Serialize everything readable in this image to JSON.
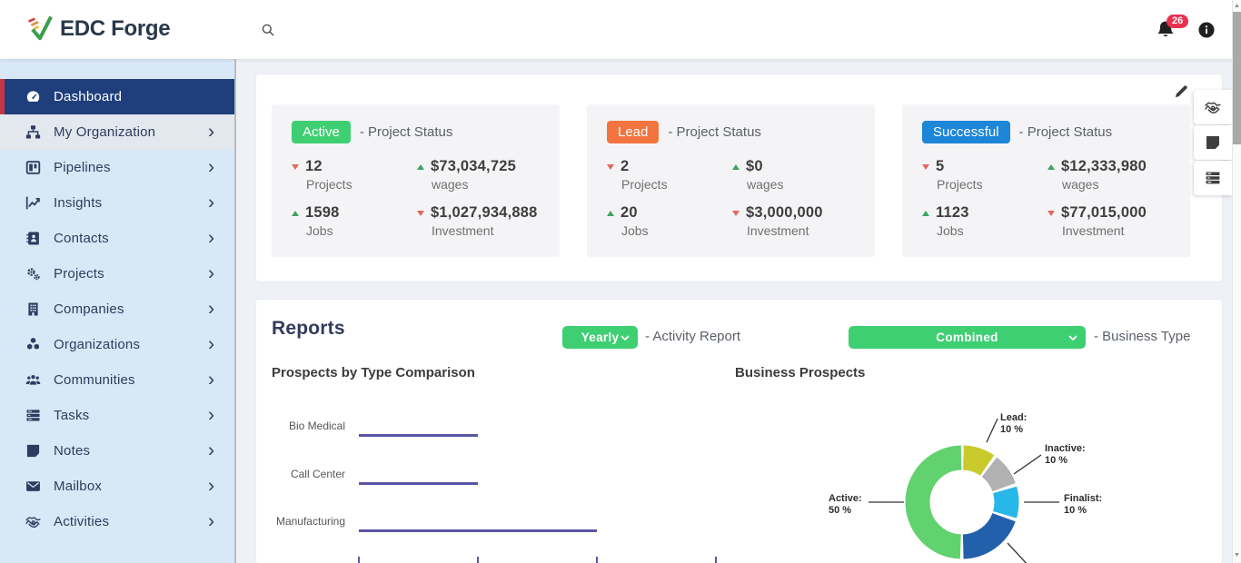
{
  "theme": {
    "sidebar_active_bg": "#1e3e7c",
    "sidebar_active_border": "#c63642",
    "accent_green": "#3ecf73",
    "trend_up": "#3ba55f",
    "trend_down": "#e2685c"
  },
  "header": {
    "brand": {
      "name": "EDC Forge"
    },
    "notifications": {
      "count": "26"
    }
  },
  "sidebar": {
    "items": [
      {
        "label": "Dashboard",
        "icon": "dashboard-icon",
        "active": true,
        "has_submenu": false
      },
      {
        "label": "My Organization",
        "icon": "org-chart-icon",
        "highlighted": true,
        "has_submenu": true
      },
      {
        "label": "Pipelines",
        "icon": "pipelines-icon",
        "has_submenu": true
      },
      {
        "label": "Insights",
        "icon": "insights-icon",
        "has_submenu": true
      },
      {
        "label": "Contacts",
        "icon": "contacts-icon",
        "has_submenu": true
      },
      {
        "label": "Projects",
        "icon": "gears-icon",
        "has_submenu": true
      },
      {
        "label": "Companies",
        "icon": "building-icon",
        "has_submenu": true
      },
      {
        "label": "Organizations",
        "icon": "cubes-icon",
        "has_submenu": true
      },
      {
        "label": "Communities",
        "icon": "users-icon",
        "has_submenu": true
      },
      {
        "label": "Tasks",
        "icon": "tasks-icon",
        "has_submenu": true
      },
      {
        "label": "Notes",
        "icon": "note-icon",
        "has_submenu": true
      },
      {
        "label": "Mailbox",
        "icon": "envelope-icon",
        "has_submenu": true
      },
      {
        "label": "Activities",
        "icon": "handshake-icon",
        "has_submenu": true
      }
    ]
  },
  "status_panel": {
    "cards": [
      {
        "badge": "Active",
        "badge_color": "#3ecf73",
        "suffix": "- Project Status",
        "stats": [
          {
            "value": "12",
            "label": "Projects",
            "trend": "down"
          },
          {
            "value": "$73,034,725",
            "label": "wages",
            "trend": "up"
          },
          {
            "value": "1598",
            "label": "Jobs",
            "trend": "up"
          },
          {
            "value": "$1,027,934,888",
            "label": "Investment",
            "trend": "down"
          }
        ]
      },
      {
        "badge": "Lead",
        "badge_color": "#f3743e",
        "suffix": "- Project Status",
        "stats": [
          {
            "value": "2",
            "label": "Projects",
            "trend": "down"
          },
          {
            "value": "$0",
            "label": "wages",
            "trend": "up"
          },
          {
            "value": "20",
            "label": "Jobs",
            "trend": "up"
          },
          {
            "value": "$3,000,000",
            "label": "Investment",
            "trend": "down"
          }
        ]
      },
      {
        "badge": "Successful",
        "badge_color": "#1c86d8",
        "suffix": "- Project Status",
        "stats": [
          {
            "value": "5",
            "label": "Projects",
            "trend": "down"
          },
          {
            "value": "$12,333,980",
            "label": "wages",
            "trend": "up"
          },
          {
            "value": "1123",
            "label": "Jobs",
            "trend": "up"
          },
          {
            "value": "$77,015,000",
            "label": "Investment",
            "trend": "down"
          }
        ]
      }
    ]
  },
  "reports": {
    "title": "Reports",
    "activity_dropdown": {
      "value": "Yearly",
      "suffix": "- Activity Report"
    },
    "business_dropdown": {
      "value": "Combined",
      "suffix": "- Business Type"
    }
  },
  "chart_data": [
    {
      "type": "bar",
      "orientation": "horizontal",
      "title": "Prospects by Type Comparison",
      "categories": [
        "Bio Medical",
        "Call Center",
        "Manufacturing"
      ],
      "values": [
        1,
        1,
        2
      ],
      "xlim": [
        0,
        3
      ],
      "bar_color": "#5b55a6",
      "note": "x-axis tick labels are cut off at the bottom edge of the viewport"
    },
    {
      "type": "pie",
      "style": "donut",
      "title": "Business Prospects",
      "start_angle": "top",
      "direction": "clockwise",
      "unit": "%",
      "segments": [
        {
          "label": "Lead",
          "value": 10,
          "color": "#c9ca2b"
        },
        {
          "label": "Inactive",
          "value": 10,
          "color": "#b1b1b1"
        },
        {
          "label": "Finalist",
          "value": 10,
          "color": "#28b7e9"
        },
        {
          "label": "",
          "value": 20,
          "color": "#2360ab",
          "label_visible": false
        },
        {
          "label": "Active",
          "value": 50,
          "color": "#62d26f"
        }
      ]
    }
  ],
  "quick_actions": [
    {
      "name": "activities",
      "icon": "handshake-icon"
    },
    {
      "name": "notes",
      "icon": "note-icon"
    },
    {
      "name": "tasks",
      "icon": "tasks-icon"
    }
  ]
}
